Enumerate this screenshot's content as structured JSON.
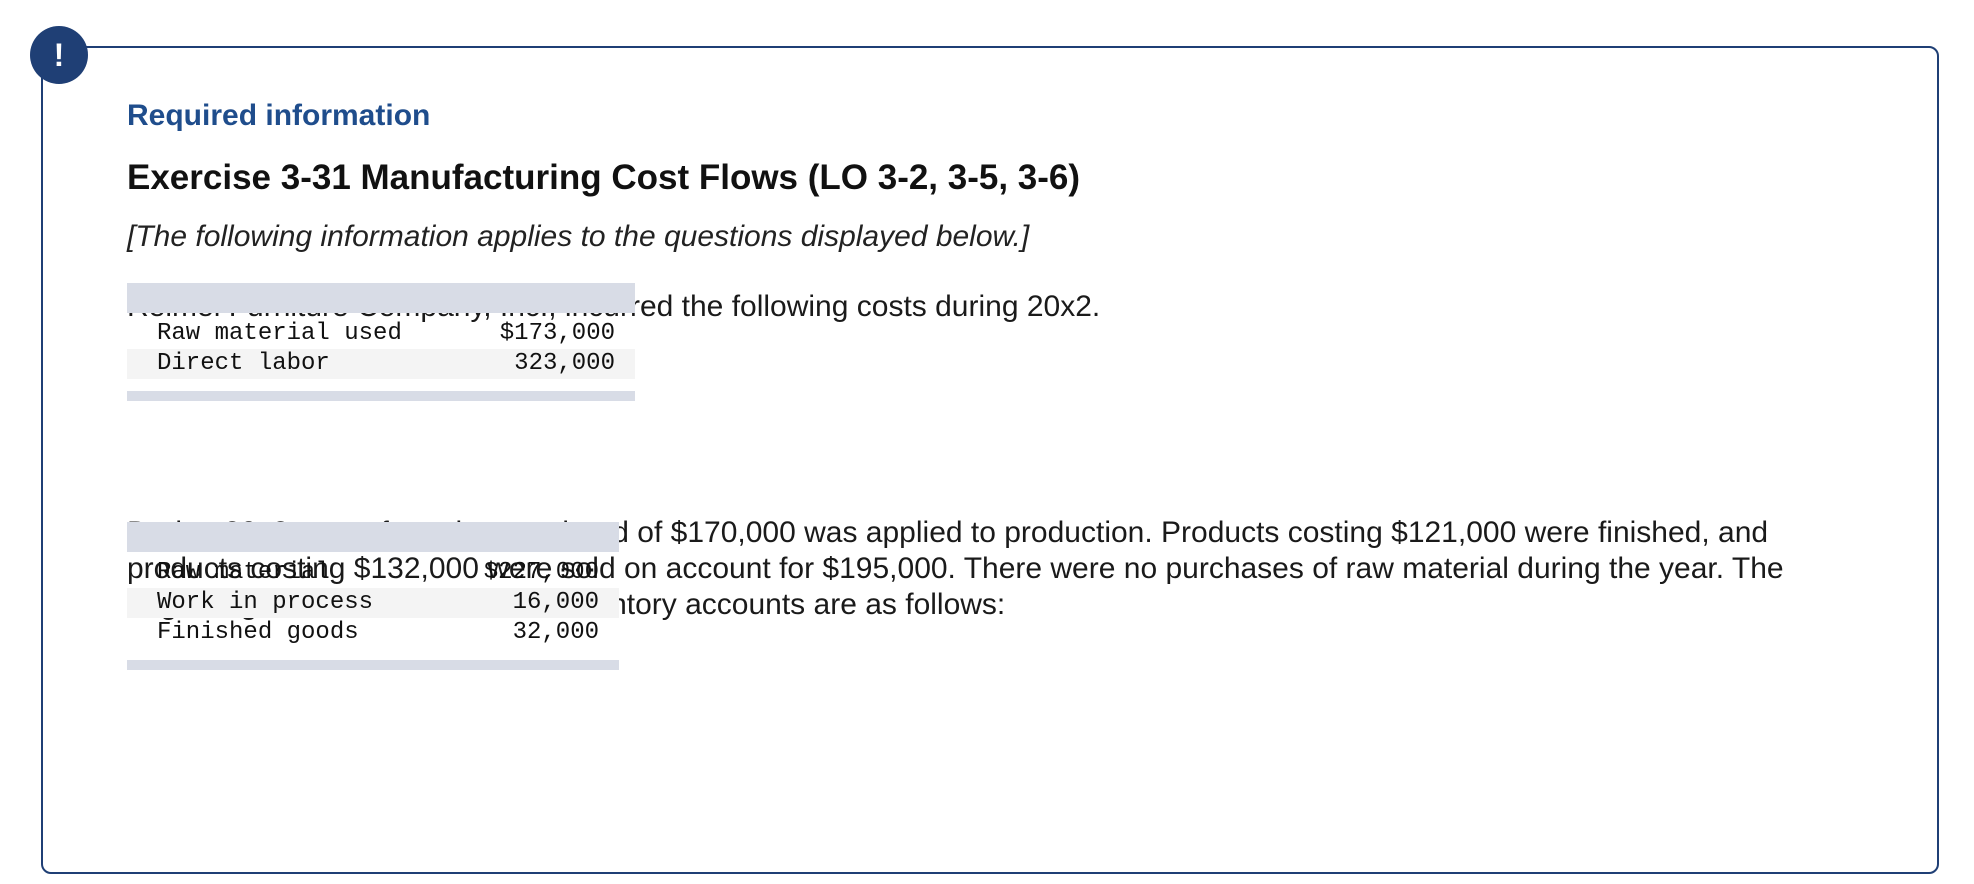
{
  "badge": {
    "symbol": "!"
  },
  "header": {
    "required_label": "Required information",
    "title": "Exercise 3-31 Manufacturing Cost Flows (LO 3-2, 3-5, 3-6)",
    "applies_note": "[The following information applies to the questions displayed below.]"
  },
  "intro_text": "Reimel Furniture Company, Inc., incurred the following costs during 20x2.",
  "costs_table": {
    "rows": [
      {
        "label": "Raw material used",
        "value": "$173,000"
      },
      {
        "label": "Direct labor",
        "value": "323,000"
      }
    ]
  },
  "paragraph2": "During 20x2, manufacturing overhead of $170,000 was applied to production. Products costing $121,000 were finished, and products costing $132,000 were sold on account for $195,000. There were no purchases of raw material during the year. The beginning balances in the firm’s inventory accounts are as follows:",
  "inventory_table": {
    "rows": [
      {
        "label": "Raw material",
        "value": "$227,000"
      },
      {
        "label": "Work in process",
        "value": "16,000"
      },
      {
        "label": "Finished goods",
        "value": "32,000"
      }
    ]
  },
  "colors": {
    "accent": "#1f3f75",
    "heading_blue": "#1f4d8c",
    "table_band": "#d8dce6",
    "row_shade": "#f4f4f4"
  }
}
